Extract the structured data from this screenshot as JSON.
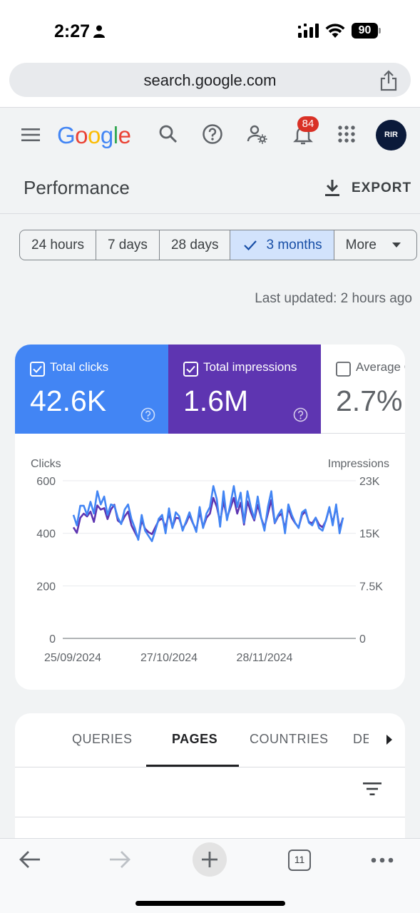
{
  "status_bar": {
    "time": "2:27",
    "battery": "90"
  },
  "url_bar": {
    "url": "search.google.com"
  },
  "header": {
    "logo": "Google",
    "notification_count": "84",
    "avatar_text": "RIR"
  },
  "page": {
    "title": "Performance",
    "export_label": "EXPORT",
    "last_updated": "Last updated: 2 hours ago"
  },
  "date_range": {
    "chips": [
      {
        "label": "24 hours",
        "active": false
      },
      {
        "label": "7 days",
        "active": false
      },
      {
        "label": "28 days",
        "active": false
      },
      {
        "label": "3 months",
        "active": true
      },
      {
        "label": "More",
        "active": false
      }
    ]
  },
  "metrics": [
    {
      "label": "Total clicks",
      "value": "42.6K",
      "checked": true,
      "color": "#4285f4"
    },
    {
      "label": "Total impressions",
      "value": "1.6M",
      "checked": true,
      "color": "#5e35b1"
    },
    {
      "label": "Average CTR",
      "value": "2.7%",
      "checked": false,
      "color": "#ffffff"
    }
  ],
  "chart_data": {
    "type": "line",
    "left_axis_label": "Clicks",
    "right_axis_label": "Impressions",
    "left_ticks": [
      "600",
      "400",
      "200",
      "0"
    ],
    "right_ticks": [
      "23K",
      "15K",
      "7.5K",
      "0"
    ],
    "x_tick_labels": [
      "25/09/2024",
      "27/10/2024",
      "28/11/2024"
    ],
    "ylim_left": [
      0,
      600
    ],
    "ylim_right": [
      0,
      23000
    ],
    "series": [
      {
        "name": "Clicks",
        "color": "#4285f4",
        "axis": "left",
        "values": [
          470,
          430,
          505,
          505,
          470,
          520,
          475,
          560,
          510,
          540,
          470,
          510,
          505,
          460,
          435,
          490,
          510,
          455,
          420,
          375,
          470,
          410,
          390,
          370,
          410,
          455,
          470,
          400,
          495,
          420,
          480,
          465,
          410,
          445,
          480,
          440,
          405,
          500,
          420,
          475,
          500,
          580,
          530,
          425,
          560,
          450,
          510,
          580,
          500,
          555,
          440,
          560,
          500,
          455,
          540,
          460,
          410,
          500,
          560,
          440,
          470,
          490,
          400,
          510,
          470,
          440,
          420,
          480,
          490,
          440,
          430,
          460,
          420,
          410,
          450,
          500,
          430,
          510,
          400,
          460
        ]
      },
      {
        "name": "Impressions",
        "color": "#5e35b1",
        "axis": "right",
        "values": [
          16200,
          15400,
          17600,
          18200,
          17800,
          18500,
          17000,
          19400,
          18800,
          19000,
          17400,
          18800,
          19500,
          17200,
          16800,
          17800,
          18500,
          16500,
          15500,
          14500,
          17200,
          16000,
          15500,
          15200,
          16200,
          17200,
          17500,
          16200,
          18200,
          16200,
          17600,
          17500,
          16000,
          16800,
          18000,
          16800,
          15800,
          18500,
          16200,
          17600,
          18200,
          20500,
          19200,
          17000,
          20000,
          17600,
          19000,
          20500,
          18200,
          19800,
          16600,
          20000,
          18400,
          17200,
          19500,
          17600,
          16200,
          18200,
          20200,
          16800,
          17800,
          18200,
          16000,
          19000,
          17600,
          16800,
          16200,
          18000,
          18500,
          17000,
          16800,
          17600,
          16600,
          16200,
          17200,
          19000,
          16800,
          19200,
          16000,
          17600
        ]
      }
    ]
  },
  "tabs": {
    "items": [
      "QUERIES",
      "PAGES",
      "COUNTRIES",
      "DE"
    ],
    "active": "PAGES"
  },
  "bottom_bar": {
    "tab_count": "11"
  }
}
